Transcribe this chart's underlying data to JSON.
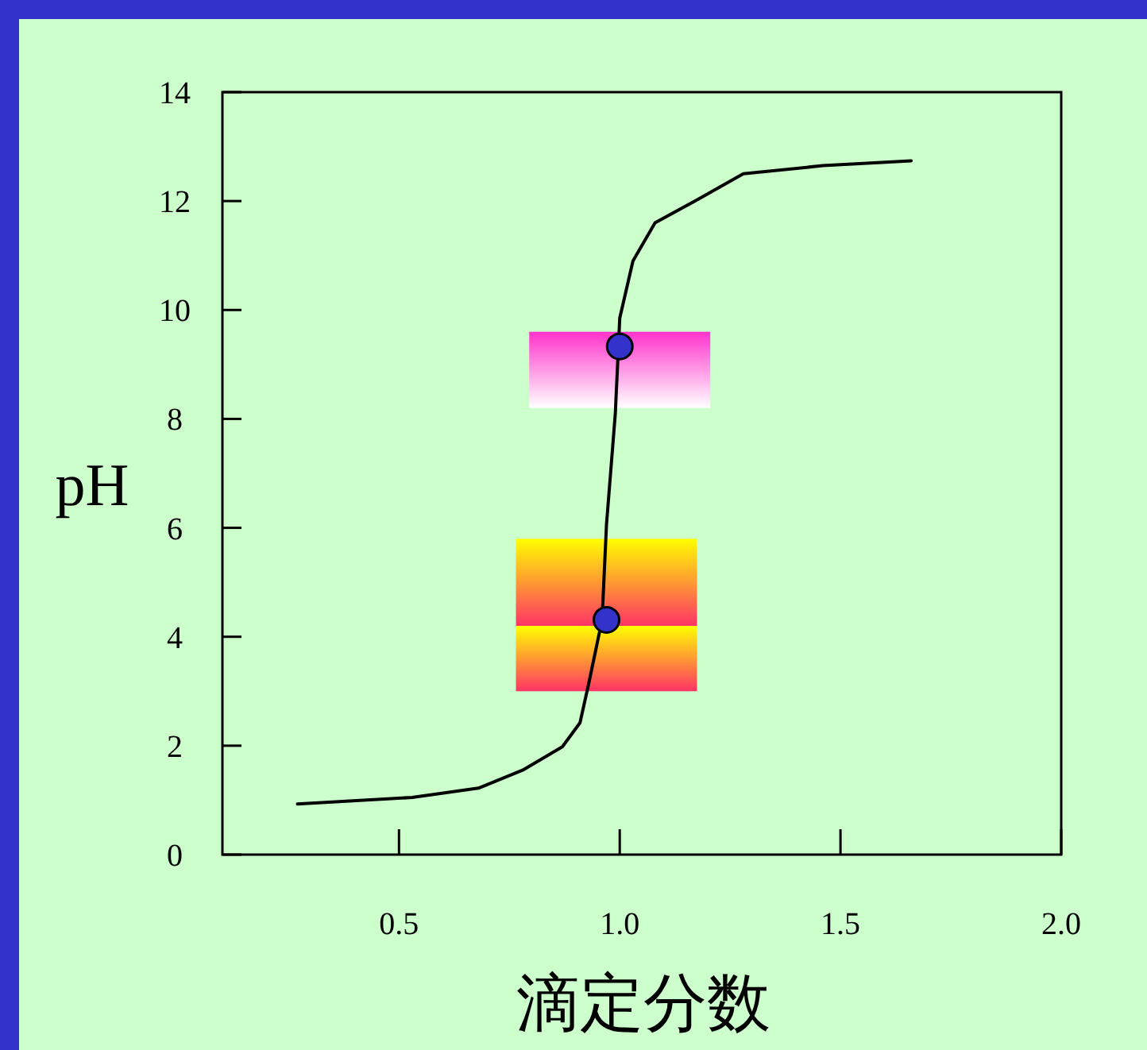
{
  "chart_data": {
    "type": "line",
    "xlabel": "滴定分数",
    "ylabel": "pH",
    "xlim": [
      0.1,
      2.0
    ],
    "ylim": [
      0,
      14
    ],
    "xticks": [
      {
        "value": 0.5,
        "label": "0.5"
      },
      {
        "value": 1.0,
        "label": "1.0"
      },
      {
        "value": 1.5,
        "label": "1.5"
      },
      {
        "value": 2.0,
        "label": "2.0"
      }
    ],
    "yticks": [
      0,
      2,
      4,
      6,
      8,
      10,
      12,
      14
    ],
    "series": [
      {
        "color": "#000000",
        "x": [
          0.27,
          0.53,
          0.68,
          0.78,
          0.87,
          0.91,
          0.93,
          0.96,
          0.97,
          0.99,
          1.0,
          1.03,
          1.08,
          1.17,
          1.28,
          1.46,
          1.66
        ],
        "values": [
          0.93,
          1.05,
          1.22,
          1.55,
          1.98,
          2.42,
          3.15,
          4.31,
          6.06,
          8.1,
          9.85,
          10.9,
          11.6,
          12.0,
          12.5,
          12.65,
          12.74
        ]
      },
      {
        "type": "scatter",
        "color": "#3333cc",
        "marker": "circle",
        "x": [
          1.0,
          0.97
        ],
        "values": [
          9.33,
          4.31
        ]
      }
    ],
    "bands": [
      {
        "axis": "y",
        "from": 8.2,
        "to": 9.6,
        "color": "#ff33cc"
      },
      {
        "axis": "y",
        "from": 4.2,
        "to": 5.8,
        "color": "#ffff00"
      },
      {
        "axis": "y",
        "from": 3.0,
        "to": 4.2,
        "color": "#ffff00"
      }
    ],
    "grid": false
  }
}
